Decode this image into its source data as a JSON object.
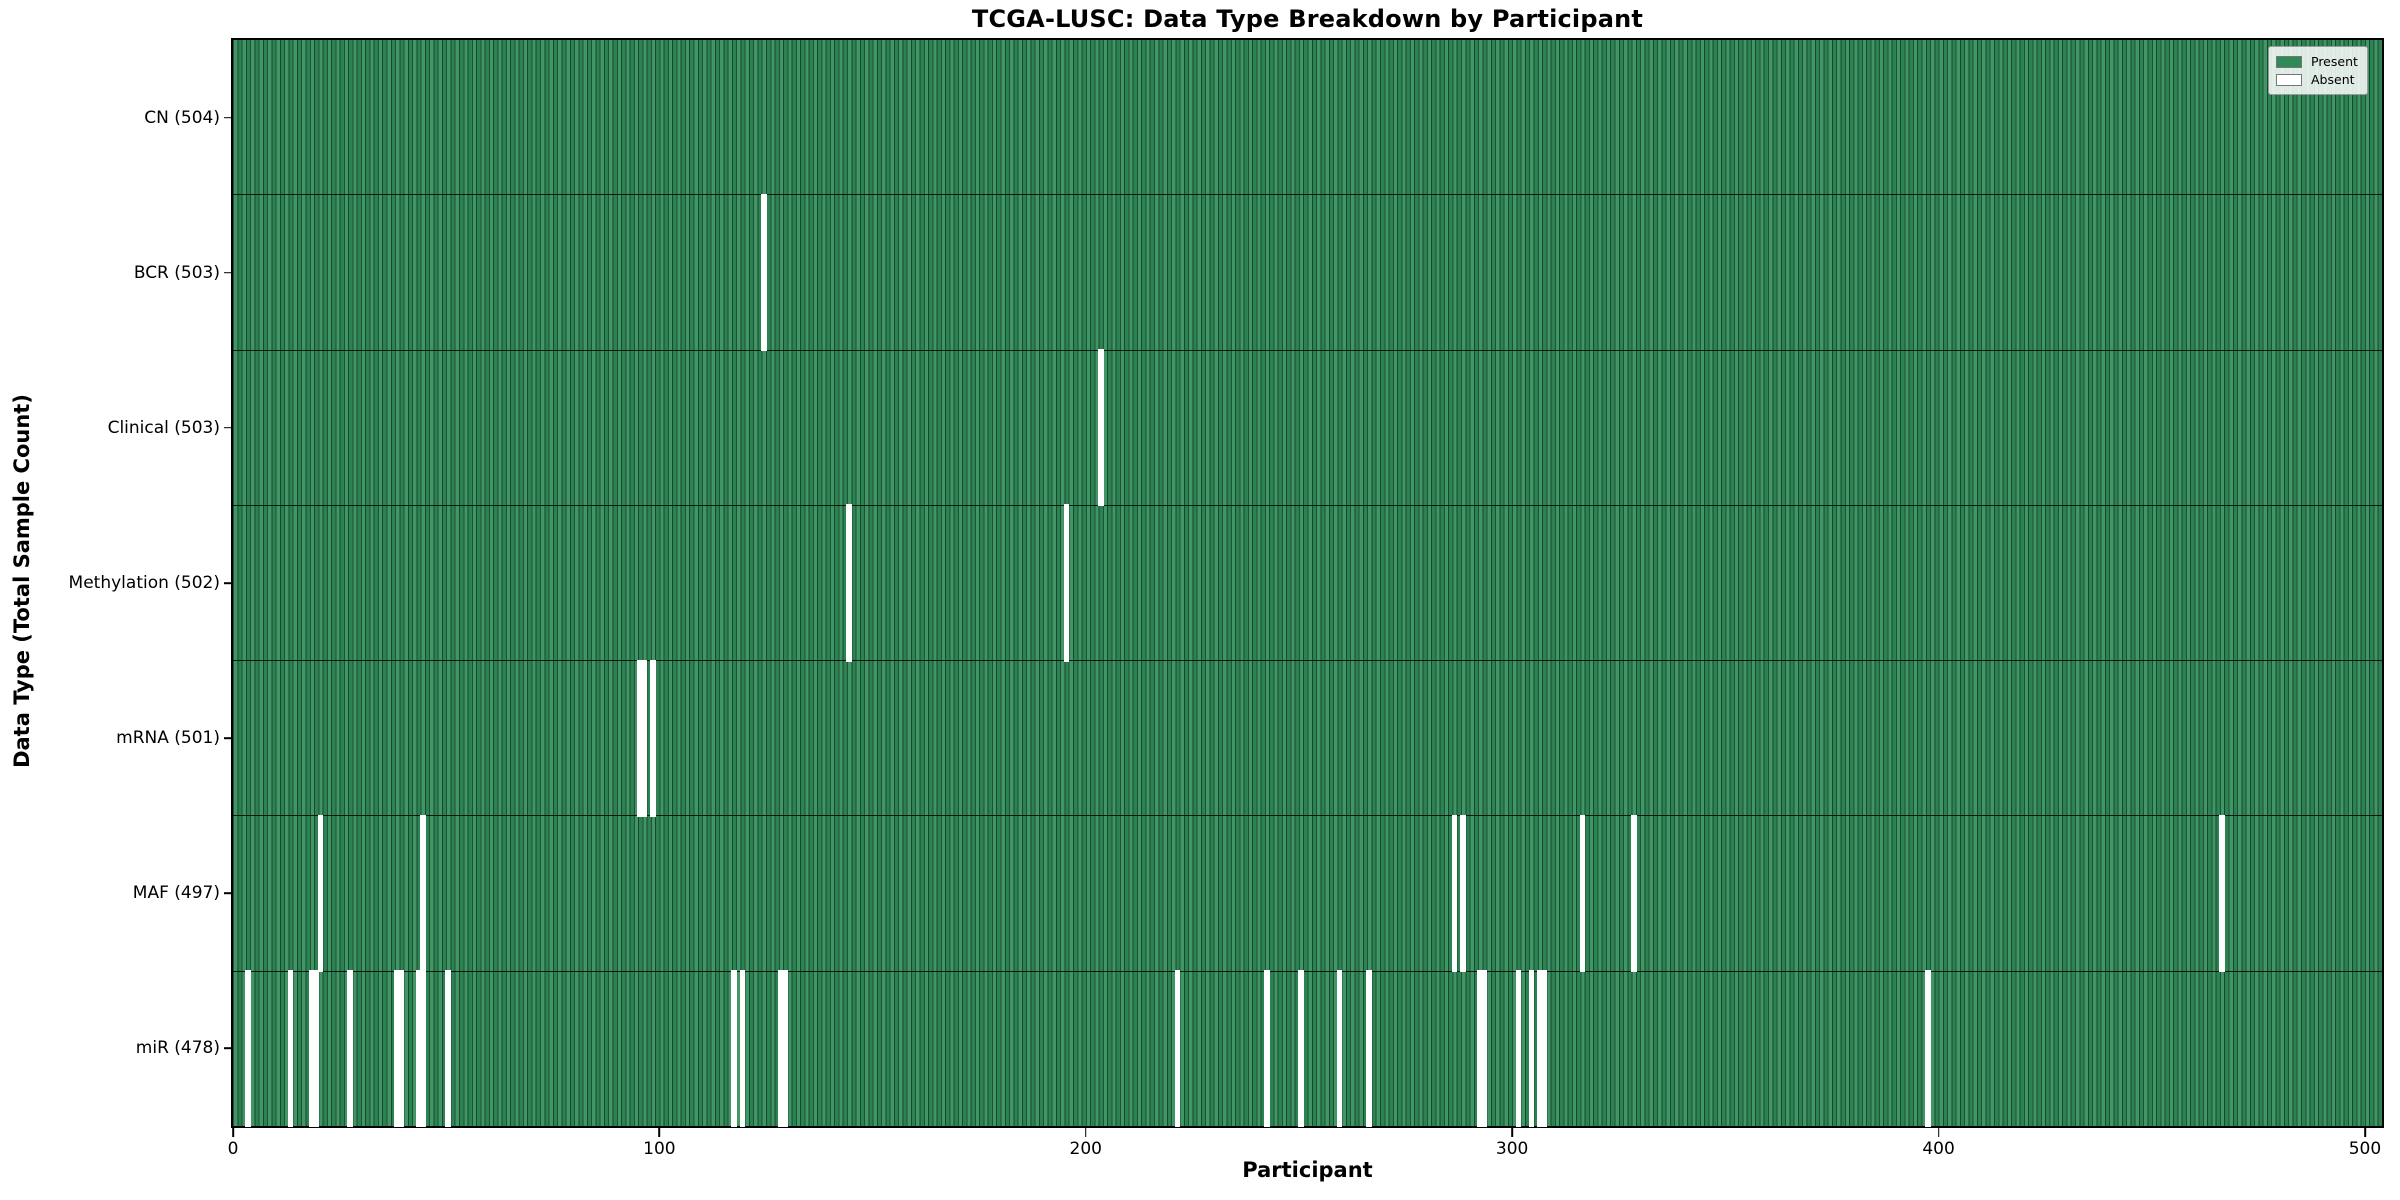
{
  "title": "TCGA-LUSC: Data Type Breakdown by Participant",
  "axes": {
    "x_label": "Participant",
    "y_label": "Data Type (Total Sample Count)"
  },
  "legend": {
    "items": [
      {
        "label": "Present",
        "color": "#2e8b57"
      },
      {
        "label": "Absent",
        "color": "#ffffff"
      }
    ]
  },
  "colors": {
    "present": "#2e8b57",
    "absent": "#ffffff",
    "bar_edge": "#123322",
    "plot_border": "#000000",
    "text": "#000000"
  },
  "chart_data": {
    "type": "heatmap",
    "title": "TCGA-LUSC: Data Type Breakdown by Participant",
    "xlabel": "Participant",
    "ylabel": "Data Type (Total Sample Count)",
    "x_range": [
      0,
      504
    ],
    "x_ticks": [
      0,
      100,
      200,
      300,
      400,
      500
    ],
    "n_participants": 504,
    "legend_entries": [
      "Present",
      "Absent"
    ],
    "legend_position": "upper right",
    "grid": false,
    "rows": [
      {
        "label": "CN (504)",
        "data_type": "CN",
        "total_sample_count": 504,
        "absent_participants": []
      },
      {
        "label": "BCR (503)",
        "data_type": "BCR",
        "total_sample_count": 503,
        "absent_participants": [
          124
        ]
      },
      {
        "label": "Clinical (503)",
        "data_type": "Clinical",
        "total_sample_count": 503,
        "absent_participants": [
          203
        ]
      },
      {
        "label": "Methylation (502)",
        "data_type": "Methylation",
        "total_sample_count": 502,
        "absent_participants": [
          144,
          195
        ]
      },
      {
        "label": "mRNA (501)",
        "data_type": "mRNA",
        "total_sample_count": 501,
        "absent_participants": [
          95,
          96,
          98
        ]
      },
      {
        "label": "MAF (497)",
        "data_type": "MAF",
        "total_sample_count": 497,
        "absent_participants": [
          20,
          44,
          286,
          288,
          316,
          328,
          466
        ]
      },
      {
        "label": "miR (478)",
        "data_type": "miR",
        "total_sample_count": 478,
        "absent_participants": [
          3,
          13,
          18,
          19,
          27,
          38,
          39,
          43,
          44,
          50,
          117,
          119,
          128,
          129,
          221,
          242,
          250,
          259,
          266,
          292,
          293,
          301,
          304,
          306,
          307,
          397
        ]
      }
    ]
  }
}
